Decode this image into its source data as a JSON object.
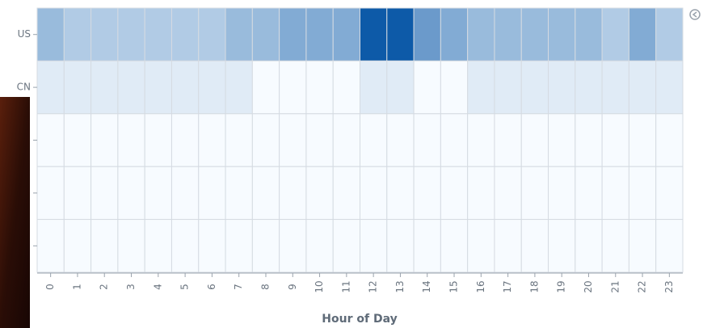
{
  "chart_data": {
    "type": "heatmap",
    "x_label": "Hour of Day",
    "categories": [
      "0",
      "1",
      "2",
      "3",
      "4",
      "5",
      "6",
      "7",
      "8",
      "9",
      "10",
      "11",
      "12",
      "13",
      "14",
      "15",
      "16",
      "17",
      "18",
      "19",
      "20",
      "21",
      "22",
      "23"
    ],
    "rows": [
      "US",
      "CN",
      null,
      null,
      null
    ],
    "values": [
      [
        4,
        3,
        3,
        3,
        3,
        3,
        3,
        4,
        4,
        5,
        5,
        5,
        10,
        10,
        6,
        5,
        4,
        4,
        4,
        4,
        4,
        3,
        5,
        3
      ],
      [
        1,
        1,
        1,
        1,
        1,
        1,
        1,
        1,
        0,
        0,
        0,
        0,
        1,
        1,
        0,
        0,
        1,
        1,
        1,
        1,
        1,
        1,
        1,
        1
      ],
      [
        0,
        0,
        0,
        0,
        0,
        0,
        0,
        0,
        0,
        0,
        0,
        0,
        0,
        0,
        0,
        0,
        0,
        0,
        0,
        0,
        0,
        0,
        0,
        0
      ],
      [
        0,
        0,
        0,
        0,
        0,
        0,
        0,
        0,
        0,
        0,
        0,
        0,
        0,
        0,
        0,
        0,
        0,
        0,
        0,
        0,
        0,
        0,
        0,
        0
      ],
      [
        0,
        0,
        0,
        0,
        0,
        0,
        0,
        0,
        0,
        0,
        0,
        0,
        0,
        0,
        0,
        0,
        0,
        0,
        0,
        0,
        0,
        0,
        0,
        0
      ]
    ],
    "color_low": "#f7fbff",
    "color_high": "#0d5aa8"
  }
}
